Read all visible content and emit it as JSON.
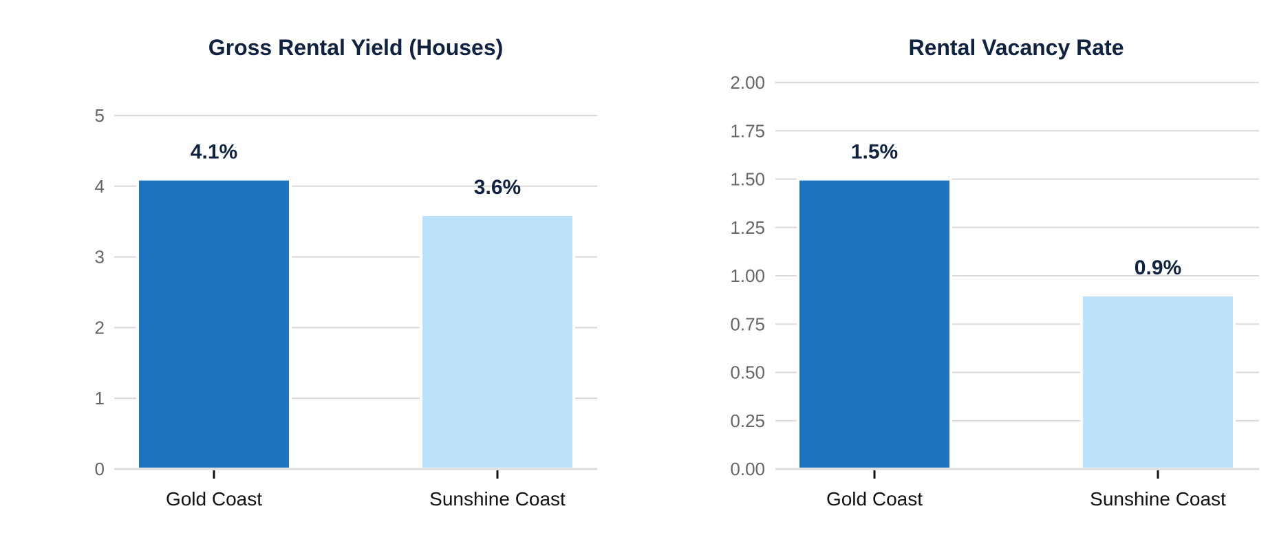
{
  "colors": {
    "gold_coast": "#1f74c0",
    "sunshine_coast": "#bde2fc",
    "title": "#0f2240",
    "grid": "#d9d9d9"
  },
  "chart_data": [
    {
      "type": "bar",
      "title": "Gross Rental Yield (Houses)",
      "categories": [
        "Gold Coast",
        "Sunshine Coast"
      ],
      "values": [
        4.1,
        3.6
      ],
      "data_labels": [
        "4.1%",
        "3.6%"
      ],
      "ylim": [
        0,
        5
      ],
      "yticks": [
        0,
        1,
        2,
        3,
        4,
        5
      ],
      "ytick_labels": [
        "0",
        "1",
        "2",
        "3",
        "4",
        "5"
      ],
      "grid": true,
      "xlabel": "",
      "ylabel": ""
    },
    {
      "type": "bar",
      "title": "Rental Vacancy Rate",
      "categories": [
        "Gold Coast",
        "Sunshine Coast"
      ],
      "values": [
        1.5,
        0.9
      ],
      "data_labels": [
        "1.5%",
        "0.9%"
      ],
      "ylim": [
        0,
        2
      ],
      "yticks": [
        0,
        0.25,
        0.5,
        0.75,
        1,
        1.25,
        1.5,
        1.75,
        2
      ],
      "ytick_labels": [
        "0.00",
        "0.25",
        "0.50",
        "0.75",
        "1.00",
        "1.25",
        "1.50",
        "1.75",
        "2.00"
      ],
      "grid": true,
      "xlabel": "",
      "ylabel": ""
    }
  ]
}
